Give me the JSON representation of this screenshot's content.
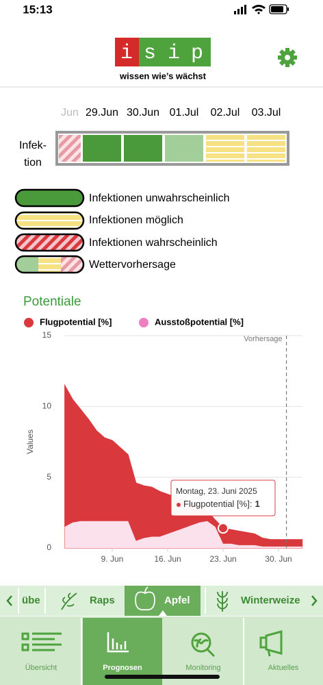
{
  "status_bar": {
    "time": "15:13"
  },
  "header": {
    "logo_letters": [
      "i",
      "s",
      "i",
      "p"
    ],
    "tagline": "wissen wie’s wächst"
  },
  "infection": {
    "dates": [
      "Jun",
      "29.Jun",
      "30.Jun",
      "01.Jul",
      "02.Jul",
      "03.Jul"
    ],
    "row_label": [
      "Infek-",
      "tion"
    ]
  },
  "legend": [
    "Infektionen unwahrscheinlich",
    "Infektionen möglich",
    "Infektionen wahrscheinlich",
    "Wettervorhersage"
  ],
  "chart_data": {
    "type": "area",
    "title": "Potentiale",
    "ylabel": "Values",
    "x": [
      "2025-06-03",
      "2025-06-04",
      "2025-06-05",
      "2025-06-06",
      "2025-06-07",
      "2025-06-08",
      "2025-06-09",
      "2025-06-10",
      "2025-06-11",
      "2025-06-12",
      "2025-06-13",
      "2025-06-14",
      "2025-06-15",
      "2025-06-16",
      "2025-06-17",
      "2025-06-18",
      "2025-06-19",
      "2025-06-20",
      "2025-06-21",
      "2025-06-22",
      "2025-06-23",
      "2025-06-24",
      "2025-06-25",
      "2025-06-26",
      "2025-06-27",
      "2025-06-28",
      "2025-06-29",
      "2025-06-30",
      "2025-07-01",
      "2025-07-02",
      "2025-07-03"
    ],
    "series": [
      {
        "name": "Flugpotential [%]",
        "color": "#d9383c",
        "values": [
          11.5,
          10.5,
          9.8,
          9.1,
          8.3,
          7.8,
          7.6,
          7.1,
          6.6,
          4.6,
          4.4,
          4.3,
          4.0,
          3.8,
          3.6,
          3.4,
          3.2,
          3.0,
          2.6,
          2.0,
          1.4,
          1.3,
          1.2,
          1.1,
          1.0,
          0.7,
          0.6,
          0.6,
          0.6,
          0.6,
          0.6
        ]
      },
      {
        "name": "Ausstoßpotential [%]",
        "color": "#ee80c2",
        "values": [
          1.5,
          1.8,
          1.9,
          1.9,
          1.9,
          1.9,
          1.9,
          1.9,
          1.9,
          0.5,
          0.7,
          0.8,
          0.8,
          1.0,
          1.2,
          1.4,
          1.6,
          1.8,
          1.9,
          1.5,
          0.3,
          0.3,
          0.2,
          0.2,
          0.2,
          0.1,
          0.1,
          0.1,
          0.1,
          0.1,
          0.1
        ]
      }
    ],
    "xlim": [
      "2025-06-03",
      "2025-07-03"
    ],
    "xticks": [
      {
        "value": "2025-06-09",
        "label": "9. Jun"
      },
      {
        "value": "2025-06-16",
        "label": "16. Jun"
      },
      {
        "value": "2025-06-23",
        "label": "23. Jun"
      },
      {
        "value": "2025-06-30",
        "label": "30. Jun"
      }
    ],
    "ylim": [
      0,
      15
    ],
    "yticks": [
      0,
      5,
      10,
      15
    ],
    "grid": true,
    "annotation": {
      "text": "Vorhersage",
      "x": "2025-07-01"
    },
    "tooltip": {
      "date": "Montag, 23. Juni 2025",
      "label": "Flugpotential [%]:",
      "value": "1",
      "x": "2025-06-23"
    }
  },
  "crop_tabs": [
    "übe",
    "Raps",
    "Apfel",
    "Winterweize"
  ],
  "nav": [
    "Übersicht",
    "Prognosen",
    "Monitoring",
    "Aktuelles"
  ]
}
